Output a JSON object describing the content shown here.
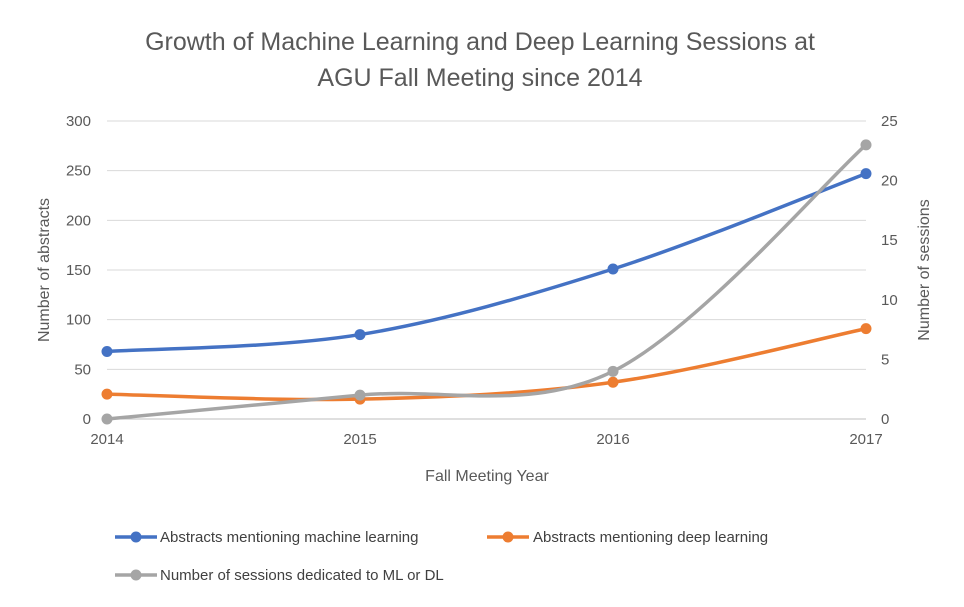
{
  "chart_data": {
    "type": "line",
    "title": "Growth of Machine Learning and Deep Learning Sessions at AGU Fall Meeting since 2014",
    "title_lines": [
      "Growth of Machine Learning and Deep Learning Sessions at",
      "AGU Fall Meeting since 2014"
    ],
    "xlabel": "Fall Meeting Year",
    "ylabel": "Number of abstracts",
    "y2label": "Number of sessions",
    "x": [
      2014,
      2015,
      2016,
      2017
    ],
    "ylim": [
      0,
      300
    ],
    "y2lim": [
      0,
      25
    ],
    "yticks": [
      0,
      50,
      100,
      150,
      200,
      250,
      300
    ],
    "y2ticks": [
      0,
      5,
      10,
      15,
      20,
      25
    ],
    "grid": true,
    "legend_position": "bottom",
    "series": [
      {
        "name": "Abstracts mentioning machine learning",
        "axis": "left",
        "color": "#4472C4",
        "values": [
          68,
          85,
          151,
          247
        ]
      },
      {
        "name": "Abstracts mentioning deep learning",
        "axis": "left",
        "color": "#ED7D31",
        "values": [
          25,
          20,
          37,
          91
        ]
      },
      {
        "name": "Number of sessions dedicated to ML or DL",
        "axis": "right",
        "color": "#A5A5A5",
        "values": [
          0,
          2,
          4,
          23
        ]
      }
    ]
  }
}
